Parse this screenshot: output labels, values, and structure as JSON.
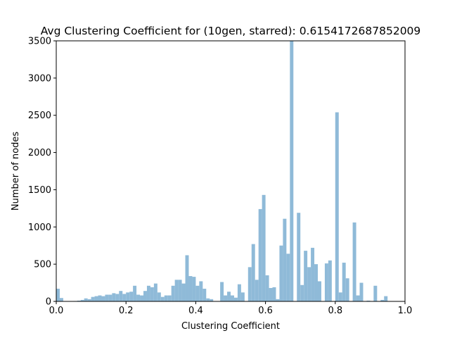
{
  "chart_data": {
    "type": "bar",
    "title": "Avg Clustering Coefficient for (10gen, starred): 0.6154172687852009",
    "xlabel": "Clustering Coefficient",
    "ylabel": "Number of nodes",
    "xlim": [
      0.0,
      1.0
    ],
    "ylim": [
      0,
      3500
    ],
    "bin_width": 0.01,
    "bar_color": "#8fbad8",
    "x_ticks": [
      "0.0",
      "0.2",
      "0.4",
      "0.6",
      "0.8",
      "1.0"
    ],
    "y_ticks": [
      "0",
      "500",
      "1000",
      "1500",
      "2000",
      "2500",
      "3000",
      "3500"
    ],
    "x": [
      0.0,
      0.01,
      0.02,
      0.03,
      0.04,
      0.05,
      0.06,
      0.07,
      0.08,
      0.09,
      0.1,
      0.11,
      0.12,
      0.13,
      0.14,
      0.15,
      0.16,
      0.17,
      0.18,
      0.19,
      0.2,
      0.21,
      0.22,
      0.23,
      0.24,
      0.25,
      0.26,
      0.27,
      0.28,
      0.29,
      0.3,
      0.31,
      0.32,
      0.33,
      0.34,
      0.35,
      0.36,
      0.37,
      0.38,
      0.39,
      0.4,
      0.41,
      0.42,
      0.43,
      0.44,
      0.45,
      0.46,
      0.47,
      0.48,
      0.49,
      0.5,
      0.51,
      0.52,
      0.53,
      0.54,
      0.55,
      0.56,
      0.57,
      0.58,
      0.59,
      0.6,
      0.61,
      0.62,
      0.63,
      0.64,
      0.65,
      0.66,
      0.67,
      0.68,
      0.69,
      0.7,
      0.71,
      0.72,
      0.73,
      0.74,
      0.75,
      0.76,
      0.77,
      0.78,
      0.79,
      0.8,
      0.81,
      0.82,
      0.83,
      0.84,
      0.85,
      0.86,
      0.87,
      0.88,
      0.89,
      0.9,
      0.91,
      0.92,
      0.93,
      0.94,
      0.95,
      0.96,
      0.97,
      0.98,
      0.99
    ],
    "values": [
      170,
      45,
      0,
      0,
      0,
      5,
      10,
      20,
      40,
      30,
      60,
      70,
      80,
      70,
      90,
      90,
      110,
      100,
      140,
      100,
      120,
      130,
      210,
      90,
      80,
      140,
      210,
      190,
      240,
      120,
      60,
      80,
      80,
      210,
      290,
      290,
      240,
      620,
      340,
      330,
      210,
      270,
      170,
      40,
      30,
      0,
      0,
      260,
      80,
      130,
      80,
      50,
      230,
      120,
      0,
      460,
      770,
      290,
      1240,
      1430,
      350,
      180,
      190,
      30,
      750,
      1110,
      640,
      3500,
      0,
      1190,
      220,
      680,
      460,
      720,
      500,
      270,
      0,
      510,
      550,
      0,
      2540,
      120,
      520,
      310,
      0,
      1060,
      80,
      250,
      0,
      10,
      0,
      210,
      0,
      20,
      70,
      0,
      0,
      0,
      0,
      0
    ]
  }
}
